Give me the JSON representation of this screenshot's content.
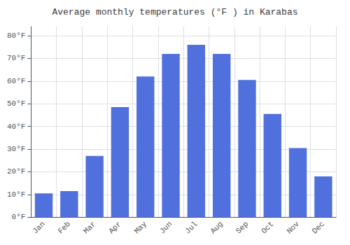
{
  "chart_data": {
    "type": "bar",
    "title": "Average monthly temperatures (°F ) in Karabas",
    "categories": [
      "Jan",
      "Feb",
      "Mar",
      "Apr",
      "May",
      "Jun",
      "Jul",
      "Aug",
      "Sep",
      "Oct",
      "Nov",
      "Dec"
    ],
    "values": [
      10.5,
      11.5,
      27,
      48.5,
      62,
      72,
      76,
      72,
      60.5,
      45.5,
      30.5,
      18
    ],
    "ylim": [
      0,
      84
    ],
    "yticks": [
      {
        "value": 0,
        "label": "0°F"
      },
      {
        "value": 10,
        "label": "10°F"
      },
      {
        "value": 20,
        "label": "20°F"
      },
      {
        "value": 30,
        "label": "30°F"
      },
      {
        "value": 40,
        "label": "40°F"
      },
      {
        "value": 50,
        "label": "50°F"
      },
      {
        "value": 60,
        "label": "60°F"
      },
      {
        "value": 70,
        "label": "70°F"
      },
      {
        "value": 80,
        "label": "80°F"
      }
    ],
    "grid": true
  }
}
